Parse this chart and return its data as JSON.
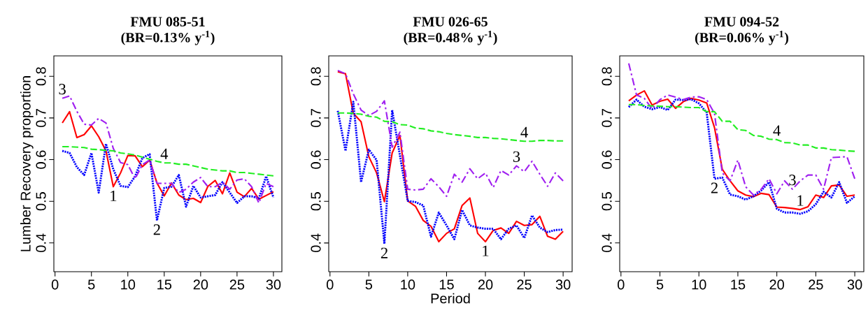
{
  "chart_data": [
    {
      "type": "line",
      "title": "FMU 085-51",
      "subtitle": "(BR=0.13% y$^{-1}$)",
      "ylabel": "Lumber Recovery proportion",
      "x": [
        1,
        2,
        3,
        4,
        5,
        6,
        7,
        8,
        9,
        10,
        11,
        12,
        13,
        14,
        15,
        16,
        17,
        18,
        19,
        20,
        21,
        22,
        23,
        24,
        25,
        26,
        27,
        28,
        29,
        30
      ],
      "xlim": [
        -0.16,
        31.16
      ],
      "ylim": [
        0.331,
        0.849
      ],
      "xticks": [
        0,
        5,
        10,
        15,
        20,
        25,
        30
      ],
      "yticks": [
        0.4,
        0.5,
        0.6,
        0.7,
        0.8
      ],
      "series": [
        {
          "color": "#ff0000",
          "line_style": "solid",
          "values": [
            0.688,
            0.715,
            0.653,
            0.66,
            0.681,
            0.655,
            0.621,
            0.535,
            0.568,
            0.61,
            0.609,
            0.583,
            0.599,
            0.544,
            0.513,
            0.544,
            0.515,
            0.504,
            0.507,
            0.497,
            0.536,
            0.55,
            0.518,
            0.568,
            0.522,
            0.511,
            0.531,
            0.505,
            0.514,
            0.523
          ]
        },
        {
          "color": "#0000ff",
          "line_style": "dotted",
          "values": [
            0.621,
            0.616,
            0.582,
            0.563,
            0.616,
            0.521,
            0.638,
            0.577,
            0.537,
            0.534,
            0.56,
            0.604,
            0.613,
            0.454,
            0.532,
            0.535,
            0.563,
            0.487,
            0.537,
            0.509,
            0.512,
            0.515,
            0.546,
            0.521,
            0.496,
            0.512,
            0.512,
            0.507,
            0.56,
            0.509
          ]
        },
        {
          "color": "#a020f0",
          "line_style": "dashdot",
          "values": [
            0.747,
            0.753,
            0.716,
            0.685,
            0.683,
            0.699,
            0.688,
            0.627,
            0.593,
            0.588,
            0.554,
            0.588,
            0.599,
            0.543,
            0.543,
            0.543,
            0.521,
            0.529,
            0.546,
            0.557,
            0.535,
            0.535,
            0.546,
            0.529,
            0.551,
            0.554,
            0.535,
            0.496,
            0.543,
            0.535
          ]
        },
        {
          "color": "#22ee22",
          "line_style": "dashed",
          "values": [
            0.631,
            0.631,
            0.63,
            0.629,
            0.625,
            0.624,
            0.622,
            0.621,
            0.616,
            0.614,
            0.611,
            0.606,
            0.601,
            0.596,
            0.592,
            0.592,
            0.589,
            0.589,
            0.585,
            0.581,
            0.577,
            0.575,
            0.573,
            0.573,
            0.569,
            0.569,
            0.567,
            0.565,
            0.563,
            0.561
          ]
        }
      ],
      "annotations": [
        {
          "text": "1",
          "x": 8,
          "y": 0.535
        },
        {
          "text": "2",
          "x": 14,
          "y": 0.454
        },
        {
          "text": "3",
          "x": 1,
          "y": 0.747
        },
        {
          "text": "4",
          "x": 15,
          "y": 0.592
        }
      ]
    },
    {
      "type": "line",
      "title": "FMU 026-65",
      "subtitle": "(BR=0.48% y$^{-1}$)",
      "xlabel": "Period",
      "x": [
        1,
        2,
        3,
        4,
        5,
        6,
        7,
        8,
        9,
        10,
        11,
        12,
        13,
        14,
        15,
        16,
        17,
        18,
        19,
        20,
        21,
        22,
        23,
        24,
        25,
        26,
        27,
        28,
        29,
        30
      ],
      "xlim": [
        -0.16,
        31.16
      ],
      "ylim": [
        0.331,
        0.849
      ],
      "xticks": [
        0,
        5,
        10,
        15,
        20,
        25,
        30
      ],
      "yticks": [
        0.4,
        0.5,
        0.6,
        0.7,
        0.8
      ],
      "series": [
        {
          "color": "#ff0000",
          "line_style": "solid",
          "values": [
            0.811,
            0.806,
            0.711,
            0.691,
            0.607,
            0.568,
            0.499,
            0.616,
            0.658,
            0.501,
            0.488,
            0.454,
            0.44,
            0.403,
            0.423,
            0.434,
            0.49,
            0.508,
            0.423,
            0.403,
            0.43,
            0.436,
            0.423,
            0.452,
            0.442,
            0.444,
            0.464,
            0.416,
            0.409,
            0.428
          ]
        },
        {
          "color": "#0000ff",
          "line_style": "dotted",
          "values": [
            0.717,
            0.621,
            0.739,
            0.546,
            0.624,
            0.599,
            0.398,
            0.719,
            0.61,
            0.501,
            0.498,
            0.49,
            0.415,
            0.473,
            0.442,
            0.409,
            0.479,
            0.442,
            0.437,
            0.434,
            0.434,
            0.409,
            0.434,
            0.442,
            0.412,
            0.466,
            0.437,
            0.426,
            0.431,
            0.432
          ]
        },
        {
          "color": "#a020f0",
          "line_style": "dashdot",
          "values": [
            0.814,
            0.806,
            0.758,
            0.719,
            0.706,
            0.716,
            0.741,
            0.63,
            0.666,
            0.529,
            0.527,
            0.529,
            0.554,
            0.535,
            0.512,
            0.565,
            0.546,
            0.578,
            0.554,
            0.568,
            0.533,
            0.574,
            0.563,
            0.585,
            0.571,
            0.596,
            0.565,
            0.536,
            0.568,
            0.549
          ]
        },
        {
          "color": "#22ee22",
          "line_style": "dashed",
          "values": [
            0.712,
            0.712,
            0.711,
            0.709,
            0.704,
            0.702,
            0.692,
            0.691,
            0.684,
            0.683,
            0.676,
            0.674,
            0.669,
            0.667,
            0.663,
            0.66,
            0.658,
            0.656,
            0.653,
            0.653,
            0.651,
            0.65,
            0.648,
            0.646,
            0.644,
            0.644,
            0.646,
            0.646,
            0.645,
            0.645
          ]
        }
      ],
      "annotations": [
        {
          "text": "1",
          "x": 20,
          "y": 0.403
        },
        {
          "text": "2",
          "x": 7,
          "y": 0.398
        },
        {
          "text": "3",
          "x": 24,
          "y": 0.585
        },
        {
          "text": "4",
          "x": 25,
          "y": 0.644
        }
      ]
    },
    {
      "type": "line",
      "title": "FMU 094-52",
      "subtitle": "(BR=0.06% y$^{-1}$)",
      "x": [
        1,
        2,
        3,
        4,
        5,
        6,
        7,
        8,
        9,
        10,
        11,
        12,
        13,
        14,
        15,
        16,
        17,
        18,
        19,
        20,
        21,
        22,
        23,
        24,
        25,
        26,
        27,
        28,
        29,
        30
      ],
      "xlim": [
        -0.16,
        31.16
      ],
      "ylim": [
        0.331,
        0.849
      ],
      "xticks": [
        0,
        5,
        10,
        15,
        20,
        25,
        30
      ],
      "yticks": [
        0.4,
        0.5,
        0.6,
        0.7,
        0.8
      ],
      "series": [
        {
          "color": "#ff0000",
          "line_style": "solid",
          "values": [
            0.741,
            0.755,
            0.765,
            0.731,
            0.74,
            0.745,
            0.723,
            0.739,
            0.747,
            0.743,
            0.736,
            0.677,
            0.577,
            0.549,
            0.525,
            0.515,
            0.511,
            0.519,
            0.516,
            0.486,
            0.485,
            0.483,
            0.48,
            0.487,
            0.515,
            0.509,
            0.537,
            0.539,
            0.512,
            0.515
          ]
        },
        {
          "color": "#0000ff",
          "line_style": "dotted",
          "values": [
            0.726,
            0.744,
            0.727,
            0.721,
            0.726,
            0.719,
            0.744,
            0.743,
            0.745,
            0.735,
            0.713,
            0.554,
            0.557,
            0.516,
            0.512,
            0.504,
            0.512,
            0.526,
            0.546,
            0.482,
            0.473,
            0.473,
            0.47,
            0.476,
            0.493,
            0.523,
            0.509,
            0.546,
            0.496,
            0.512
          ]
        },
        {
          "color": "#a020f0",
          "line_style": "dashdot",
          "values": [
            0.831,
            0.755,
            0.747,
            0.722,
            0.744,
            0.755,
            0.75,
            0.744,
            0.75,
            0.751,
            0.744,
            0.711,
            0.568,
            0.549,
            0.599,
            0.535,
            0.515,
            0.529,
            0.554,
            0.518,
            0.549,
            0.529,
            0.549,
            0.563,
            0.563,
            0.529,
            0.605,
            0.606,
            0.607,
            0.554
          ]
        },
        {
          "color": "#22ee22",
          "line_style": "dashed",
          "values": [
            0.732,
            0.732,
            0.73,
            0.729,
            0.728,
            0.727,
            0.727,
            0.726,
            0.725,
            0.725,
            0.715,
            0.715,
            0.692,
            0.692,
            0.672,
            0.67,
            0.658,
            0.656,
            0.649,
            0.648,
            0.641,
            0.64,
            0.635,
            0.635,
            0.628,
            0.628,
            0.624,
            0.623,
            0.621,
            0.62
          ]
        }
      ],
      "annotations": [
        {
          "text": "1",
          "x": 23,
          "y": 0.48
        },
        {
          "text": "2",
          "x": 12,
          "y": 0.554
        },
        {
          "text": "3",
          "x": 22,
          "y": 0.529
        },
        {
          "text": "4",
          "x": 20,
          "y": 0.648
        }
      ]
    }
  ]
}
